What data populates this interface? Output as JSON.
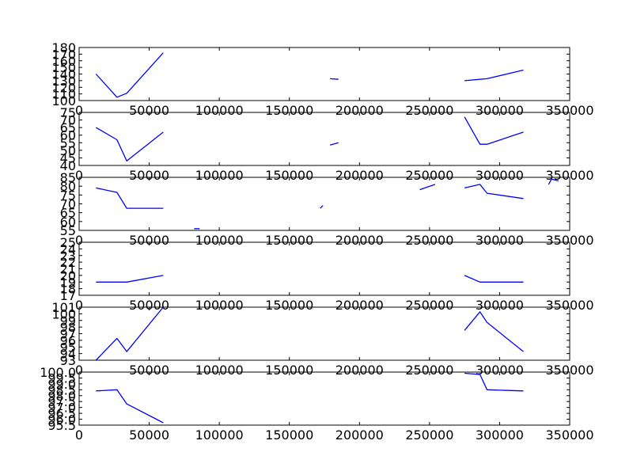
{
  "chart_data": [
    {
      "type": "line",
      "xlim": [
        0,
        350000
      ],
      "ylim": [
        100,
        180
      ],
      "x_ticks": [
        "0",
        "50000",
        "100000",
        "150000",
        "200000",
        "250000",
        "300000",
        "350000"
      ],
      "y_ticks": [
        "100",
        "110",
        "120",
        "130",
        "140",
        "150",
        "160",
        "170",
        "180"
      ],
      "color": "#0000ff",
      "segments": [
        [
          [
            12000,
            140
          ],
          [
            27000,
            105
          ],
          [
            34000,
            111
          ],
          [
            60000,
            172
          ]
        ],
        [
          [
            179000,
            133
          ],
          [
            185000,
            132
          ]
        ],
        [
          [
            275000,
            130
          ],
          [
            286000,
            132
          ],
          [
            291000,
            133
          ],
          [
            317000,
            146
          ]
        ]
      ]
    },
    {
      "type": "line",
      "xlim": [
        0,
        350000
      ],
      "ylim": [
        40,
        75
      ],
      "x_ticks": [
        "0",
        "50000",
        "100000",
        "150000",
        "200000",
        "250000",
        "300000",
        "350000"
      ],
      "y_ticks": [
        "40",
        "45",
        "50",
        "55",
        "60",
        "65",
        "70",
        "75"
      ],
      "color": "#0000ff",
      "segments": [
        [
          [
            12000,
            65
          ],
          [
            27000,
            57
          ],
          [
            34000,
            43
          ],
          [
            60000,
            62
          ]
        ],
        [
          [
            179000,
            53.5
          ],
          [
            185000,
            55
          ]
        ],
        [
          [
            275000,
            72
          ],
          [
            286000,
            54
          ],
          [
            291000,
            54
          ],
          [
            317000,
            62
          ]
        ]
      ]
    },
    {
      "type": "line",
      "xlim": [
        0,
        350000
      ],
      "ylim": [
        55,
        85
      ],
      "x_ticks": [
        "0",
        "50000",
        "100000",
        "150000",
        "200000",
        "250000",
        "300000",
        "350000"
      ],
      "y_ticks": [
        "55",
        "60",
        "65",
        "70",
        "75",
        "80",
        "85"
      ],
      "color": "#0000ff",
      "segments": [
        [
          [
            12000,
            79
          ],
          [
            27000,
            76.5
          ],
          [
            34000,
            67.5
          ],
          [
            60000,
            67.5
          ]
        ],
        [
          [
            82000,
            56
          ],
          [
            86000,
            56
          ]
        ],
        [
          [
            172000,
            67.5
          ],
          [
            174000,
            69
          ]
        ],
        [
          [
            243000,
            78
          ],
          [
            254000,
            81
          ]
        ],
        [
          [
            275000,
            79
          ],
          [
            286000,
            81
          ],
          [
            291000,
            76
          ],
          [
            317000,
            73
          ]
        ],
        [
          [
            335000,
            81
          ],
          [
            337000,
            84
          ],
          [
            342000,
            83
          ]
        ]
      ]
    },
    {
      "type": "line",
      "xlim": [
        0,
        350000
      ],
      "ylim": [
        17,
        25
      ],
      "x_ticks": [
        "0",
        "50000",
        "100000",
        "150000",
        "200000",
        "250000",
        "300000",
        "350000"
      ],
      "y_ticks": [
        "17",
        "18",
        "19",
        "20",
        "21",
        "22",
        "23",
        "24",
        "25"
      ],
      "color": "#0000ff",
      "segments": [
        [
          [
            12000,
            19
          ],
          [
            27000,
            19
          ],
          [
            34000,
            19
          ],
          [
            60000,
            20
          ]
        ],
        [
          [
            275000,
            20
          ],
          [
            286000,
            19
          ],
          [
            291000,
            19
          ],
          [
            317000,
            19
          ]
        ]
      ]
    },
    {
      "type": "line",
      "xlim": [
        0,
        350000
      ],
      "ylim": [
        93,
        101
      ],
      "x_ticks": [
        "0",
        "50000",
        "100000",
        "150000",
        "200000",
        "250000",
        "300000",
        "350000"
      ],
      "y_ticks": [
        "93",
        "94",
        "95",
        "96",
        "97",
        "98",
        "99",
        "100",
        "101"
      ],
      "color": "#0000ff",
      "segments": [
        [
          [
            12000,
            93
          ],
          [
            27000,
            96.3
          ],
          [
            34000,
            94.3
          ],
          [
            60000,
            101
          ]
        ],
        [
          [
            275000,
            97.5
          ],
          [
            286000,
            100.3
          ],
          [
            291000,
            98.7
          ],
          [
            317000,
            94.3
          ]
        ]
      ]
    },
    {
      "type": "line",
      "xlim": [
        0,
        350000
      ],
      "ylim": [
        95.5,
        100
      ],
      "x_ticks": [
        "0",
        "50000",
        "100000",
        "150000",
        "200000",
        "250000",
        "300000",
        "350000"
      ],
      "y_ticks": [
        "95.5",
        "96.0",
        "96.5",
        "97.0",
        "97.5",
        "98.0",
        "98.5",
        "99.0",
        "99.5",
        "100.0"
      ],
      "color": "#0000ff",
      "segments": [
        [
          [
            12000,
            98.4
          ],
          [
            27000,
            98.5
          ],
          [
            34000,
            97.3
          ],
          [
            60000,
            95.7
          ]
        ],
        [
          [
            275000,
            99.9
          ],
          [
            286000,
            99.8
          ],
          [
            291000,
            98.5
          ],
          [
            317000,
            98.4
          ]
        ]
      ]
    }
  ]
}
